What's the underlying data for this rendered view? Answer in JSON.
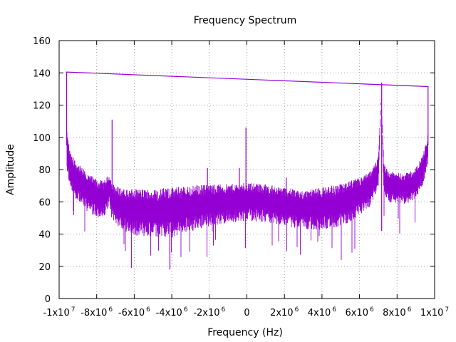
{
  "chart_data": {
    "type": "line",
    "title": "Frequency Spectrum",
    "xlabel": "Frequency (Hz)",
    "ylabel": "Amplitude",
    "xlim": [
      -10000000,
      10000000
    ],
    "ylim": [
      0,
      160
    ],
    "grid": true,
    "color": "#9400d3",
    "x_ticks": [
      {
        "value": -10000000,
        "mant": "-1x10",
        "exp": "7"
      },
      {
        "value": -8000000,
        "mant": "-8x10",
        "exp": "6"
      },
      {
        "value": -6000000,
        "mant": "-6x10",
        "exp": "6"
      },
      {
        "value": -4000000,
        "mant": "-4x10",
        "exp": "6"
      },
      {
        "value": -2000000,
        "mant": "-2x10",
        "exp": "6"
      },
      {
        "value": 0,
        "mant": "0",
        "exp": ""
      },
      {
        "value": 2000000,
        "mant": "2x10",
        "exp": "6"
      },
      {
        "value": 4000000,
        "mant": "4x10",
        "exp": "6"
      },
      {
        "value": 6000000,
        "mant": "6x10",
        "exp": "6"
      },
      {
        "value": 8000000,
        "mant": "8x10",
        "exp": "6"
      },
      {
        "value": 10000000,
        "mant": "1x10",
        "exp": "7"
      }
    ],
    "y_ticks": [
      {
        "value": 0,
        "label": "0"
      },
      {
        "value": 20,
        "label": "20"
      },
      {
        "value": 40,
        "label": "40"
      },
      {
        "value": 60,
        "label": "60"
      },
      {
        "value": 80,
        "label": "80"
      },
      {
        "value": 100,
        "label": "100"
      },
      {
        "value": 120,
        "label": "120"
      },
      {
        "value": 140,
        "label": "140"
      },
      {
        "value": 160,
        "label": "160"
      }
    ],
    "series": [
      {
        "x": [
          -9600000,
          -9600000,
          -9400000,
          -9000000,
          -8500000,
          -8000000,
          -7600000,
          -7300000,
          -7200000,
          -7000000,
          -6500000,
          -6000000,
          -5000000,
          -4000000,
          -3000000,
          -2000000,
          -1000000,
          0,
          1000000,
          2000000,
          3000000,
          4000000,
          5000000,
          6000000,
          6600000,
          7000000,
          7150000,
          7300000,
          7600000,
          8000000,
          8500000,
          9000000,
          9400000,
          9650000,
          9650000
        ],
        "y": [
          140,
          95,
          80,
          74,
          68,
          64,
          63,
          70,
          62,
          60,
          57,
          56,
          55,
          56,
          58,
          60,
          61,
          62,
          61,
          59,
          57,
          58,
          60,
          65,
          70,
          80,
          125,
          76,
          71,
          70,
          70,
          73,
          82,
          95,
          132
        ],
        "spread": [
          0,
          10,
          10,
          10,
          10,
          10,
          10,
          8,
          10,
          10,
          11,
          12,
          13,
          13,
          12,
          11,
          10,
          10,
          10,
          10,
          10,
          11,
          11,
          10,
          9,
          8,
          0,
          8,
          8,
          8,
          8,
          8,
          8,
          8,
          0
        ]
      }
    ],
    "envelope": {
      "x": [
        -9600000,
        9650000
      ],
      "y": [
        140.5,
        131.5
      ]
    },
    "spikes": [
      {
        "x": -7180000,
        "y": 111
      },
      {
        "x": -4100000,
        "y": 18
      },
      {
        "x": -2100000,
        "y": 81
      },
      {
        "x": -400000,
        "y": 81
      },
      {
        "x": -50000,
        "y": 106
      },
      {
        "x": 2100000,
        "y": 75
      },
      {
        "x": 7180000,
        "y": 134
      },
      {
        "x": 7180000,
        "y": 42
      }
    ]
  }
}
